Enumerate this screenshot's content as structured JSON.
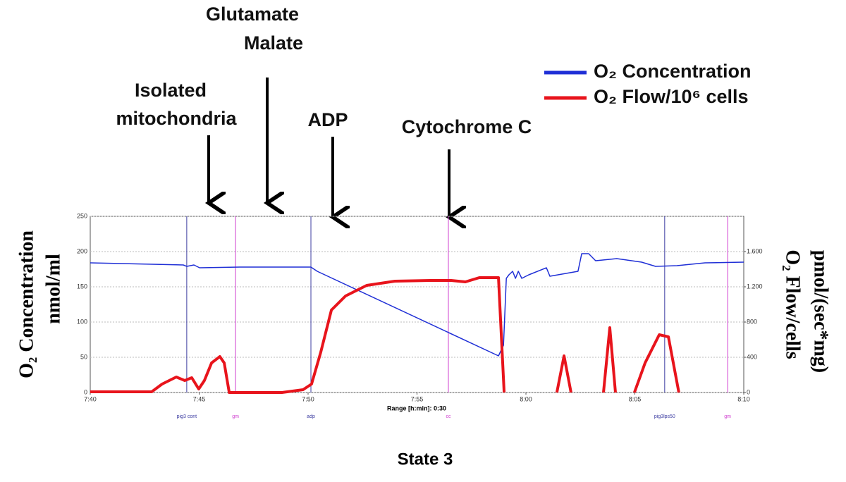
{
  "chart_data": {
    "type": "line",
    "annotations": [
      {
        "lines": [
          "Isolated",
          "mitochondria"
        ]
      },
      {
        "lines": [
          "Glutamate",
          "Malate"
        ]
      },
      {
        "lines": [
          "ADP"
        ]
      },
      {
        "lines": [
          "Cytochrome C"
        ]
      }
    ],
    "ylabel": [
      "O₂ Concentration",
      "nmol/ml"
    ],
    "y2label": [
      "O₂ Flow/cells",
      "pmol/(sec*mg)"
    ],
    "xlabel": "Range [h:min]: 0:30",
    "footer": "State 3",
    "xlim": [
      460,
      490
    ],
    "xticks": [
      {
        "value": 460,
        "label": "7:40"
      },
      {
        "value": 465,
        "label": "7:45"
      },
      {
        "value": 470,
        "label": "7:50"
      },
      {
        "value": 475,
        "label": "7:55"
      },
      {
        "value": 480,
        "label": "8:00"
      },
      {
        "value": 485,
        "label": "8:05"
      },
      {
        "value": 490,
        "label": "8:10"
      }
    ],
    "ylim": [
      0,
      250
    ],
    "yticks": [
      0,
      50,
      100,
      150,
      200,
      250
    ],
    "y2lim": [
      0,
      2000
    ],
    "y2ticks": [
      0,
      400,
      800,
      {
        "value": 1200,
        "label": "1.200"
      },
      {
        "value": 1600,
        "label": "1.600"
      }
    ],
    "grid": true,
    "legend": "upper right",
    "events": [
      {
        "x": 464.43,
        "label": "pig3 cont",
        "color": "#3a3aa0"
      },
      {
        "x": 466.67,
        "label": "gm",
        "color": "#d040d0"
      },
      {
        "x": 470.13,
        "label": "adp",
        "color": "#3a3aa0"
      },
      {
        "x": 476.44,
        "label": "cc",
        "color": "#d040d0"
      },
      {
        "x": 486.37,
        "label": "pig3lps50",
        "color": "#3a3aa0"
      },
      {
        "x": 489.26,
        "label": "gm",
        "color": "#d040d0"
      }
    ],
    "series": [
      {
        "name": "O₂ Concentration",
        "color": "#1f2fd6",
        "axis": "y",
        "x": [
          460,
          464.27,
          464.43,
          464.76,
          465.02,
          466.86,
          470.13,
          470.42,
          478.74,
          478.97,
          479.1,
          479.22,
          479.39,
          479.52,
          479.65,
          479.81,
          480.13,
          480.94,
          481.1,
          482.39,
          482.56,
          482.88,
          483.2,
          484.17,
          485.31,
          485.95,
          486.93,
          488.22,
          490
        ],
        "values": [
          184,
          181,
          179,
          181,
          177,
          178,
          178,
          172,
          52,
          67,
          162,
          167,
          172,
          162,
          172,
          162,
          167,
          177,
          165,
          172,
          197,
          197,
          187,
          190,
          185,
          179,
          180,
          184,
          185
        ]
      },
      {
        "name": "O₂ Flow/10⁶ cells",
        "color": "#e8141c",
        "axis": "y2",
        "x": [
          460,
          462.82,
          463.3,
          463.95,
          464.34,
          464.66,
          464.98,
          465.24,
          465.57,
          465.95,
          466.15,
          466.38,
          468.8,
          469.77,
          470.16,
          470.58,
          471.07,
          471.72,
          472.69,
          473.98,
          475.6,
          476.57,
          477.22,
          477.86,
          478.74,
          479.0,
          480,
          481.42,
          481.75,
          482.07,
          483,
          483.56,
          483.85,
          484.11,
          484.5,
          484.98,
          485.47,
          486.12,
          486.54,
          487.02
        ],
        "values": [
          8,
          8,
          96,
          176,
          136,
          168,
          40,
          136,
          336,
          408,
          336,
          0,
          0,
          32,
          96,
          456,
          936,
          1096,
          1216,
          1264,
          1272,
          1272,
          1256,
          1304,
          1304,
          0,
          null,
          0,
          416,
          0,
          null,
          0,
          736,
          0,
          null,
          0,
          336,
          656,
          632,
          0
        ]
      }
    ]
  }
}
